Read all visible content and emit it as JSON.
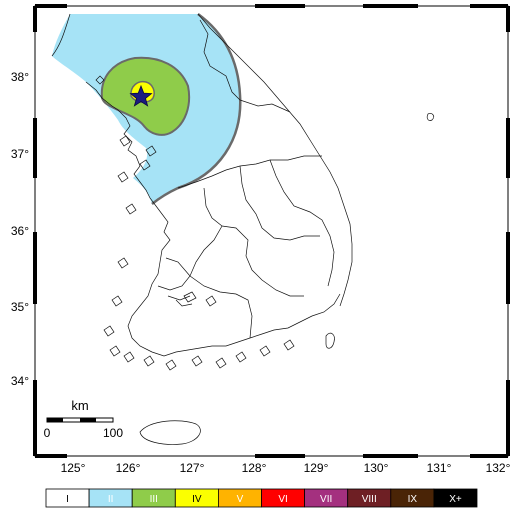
{
  "map": {
    "lon_ticks": [
      "125°",
      "126°",
      "127°",
      "128°",
      "129°",
      "130°",
      "131°",
      "132°"
    ],
    "lat_ticks": [
      "38°",
      "37°",
      "36°",
      "35°",
      "34°"
    ],
    "scale_bar": {
      "unit": "km",
      "start": "0",
      "end": "100"
    },
    "epicenter": {
      "marker": "star-icon",
      "color": "#1a1a80"
    }
  },
  "legend": {
    "items": [
      {
        "label": "I",
        "color": "#ffffff",
        "text_color": "#000000"
      },
      {
        "label": "II",
        "color": "#a6e3f6",
        "text_color": "#ffffff"
      },
      {
        "label": "III",
        "color": "#8fcc4a",
        "text_color": "#ffffff"
      },
      {
        "label": "IV",
        "color": "#fbff00",
        "text_color": "#000000"
      },
      {
        "label": "V",
        "color": "#ffb300",
        "text_color": "#ffffff"
      },
      {
        "label": "VI",
        "color": "#ff0000",
        "text_color": "#ffffff"
      },
      {
        "label": "VII",
        "color": "#a4307f",
        "text_color": "#ffffff"
      },
      {
        "label": "VIII",
        "color": "#6e1f24",
        "text_color": "#ffffff"
      },
      {
        "label": "IX",
        "color": "#4a2406",
        "text_color": "#ffffff"
      },
      {
        "label": "X+",
        "color": "#000000",
        "text_color": "#ffffff"
      }
    ]
  }
}
